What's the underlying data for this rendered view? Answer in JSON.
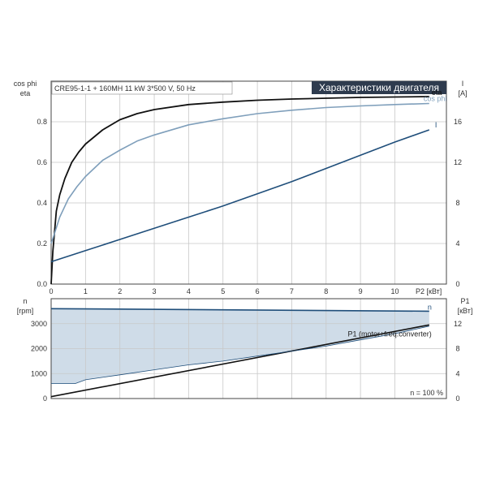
{
  "colors": {
    "eta": "#111111",
    "cos_phi": "#7f9fbb",
    "current": "#1f4e7a",
    "speed": "#1f4e7a",
    "power": "#111111",
    "fill": "#cfdce8",
    "title_bg": "#2e3b4e",
    "title_fg": "#ffffff"
  },
  "chart_data": [
    {
      "type": "line",
      "title": "Характеристики двигателя",
      "subtitle": "CRE95-1-1 + 160MH   11 kW   3*500 V, 50 Hz",
      "xlabel": "P2 [кВт]",
      "ylabel_left": [
        "cos phi",
        "eta"
      ],
      "ylabel_right": [
        "I",
        "[A]"
      ],
      "xlim": [
        0,
        11.5
      ],
      "ylim_left": [
        0,
        1.0
      ],
      "ylim_right": [
        0,
        20
      ],
      "x_ticks": [
        "0",
        "1",
        "2",
        "3",
        "4",
        "5",
        "6",
        "7",
        "8",
        "9",
        "10"
      ],
      "y_ticks_left": [
        "0.0",
        "0.2",
        "0.4",
        "0.6",
        "0.8"
      ],
      "y_ticks_right": [
        "0",
        "4",
        "8",
        "12",
        "16"
      ],
      "grid": true,
      "series": [
        {
          "name": "eta",
          "axis": "left",
          "color_key": "eta",
          "x": [
            0,
            0.05,
            0.15,
            0.25,
            0.4,
            0.6,
            0.8,
            1.0,
            1.5,
            2,
            2.5,
            3,
            4,
            5,
            6,
            7,
            8,
            9,
            10,
            11
          ],
          "y": [
            0,
            0.16,
            0.36,
            0.44,
            0.52,
            0.6,
            0.65,
            0.69,
            0.76,
            0.81,
            0.84,
            0.86,
            0.885,
            0.897,
            0.906,
            0.912,
            0.916,
            0.92,
            0.922,
            0.924
          ]
        },
        {
          "name": "cos phi",
          "axis": "left",
          "color_key": "cos_phi",
          "x": [
            0,
            0.1,
            0.25,
            0.5,
            0.75,
            1.0,
            1.5,
            2,
            2.5,
            3,
            4,
            5,
            6,
            7,
            8,
            9,
            10,
            11
          ],
          "y": [
            0.2,
            0.25,
            0.33,
            0.42,
            0.48,
            0.53,
            0.61,
            0.66,
            0.705,
            0.735,
            0.785,
            0.815,
            0.84,
            0.857,
            0.87,
            0.878,
            0.885,
            0.89
          ]
        },
        {
          "name": "I",
          "axis": "right",
          "color_key": "current",
          "x": [
            0,
            1,
            2,
            3,
            4,
            5,
            6,
            7,
            8,
            9,
            10,
            11
          ],
          "y": [
            2.2,
            3.3,
            4.4,
            5.5,
            6.6,
            7.7,
            8.9,
            10.1,
            11.4,
            12.7,
            14.0,
            15.2
          ]
        }
      ]
    },
    {
      "type": "area",
      "xlim": [
        0,
        11.5
      ],
      "ylabel_left": [
        "n",
        "[rpm]"
      ],
      "ylabel_right": [
        "P1",
        "[кВт]"
      ],
      "ylim_left": [
        0,
        4000
      ],
      "ylim_right": [
        0,
        16
      ],
      "y_ticks_left": [
        "0",
        "1000",
        "2000",
        "3000"
      ],
      "y_ticks_right": [
        "0",
        "4",
        "8",
        "12"
      ],
      "grid": true,
      "annotation": "n = 100 %",
      "series": [
        {
          "name": "n",
          "axis": "left",
          "color_key": "speed",
          "x": [
            0,
            11
          ],
          "y": [
            3600,
            3500
          ]
        },
        {
          "name": "P1 (motor+freq.converter)",
          "axis": "right",
          "color_key": "power",
          "x": [
            0,
            11
          ],
          "y": [
            0.3,
            11.8
          ]
        },
        {
          "name": "",
          "role": "operating-area-lower-bound",
          "axis": "left",
          "color_key": "current",
          "x": [
            0,
            0.7,
            1.0,
            2,
            3,
            4,
            5,
            6,
            7,
            8,
            9,
            10,
            11
          ],
          "y": [
            600,
            600,
            750,
            950,
            1150,
            1350,
            1500,
            1700,
            1900,
            2100,
            2350,
            2600,
            2900
          ]
        }
      ]
    }
  ]
}
